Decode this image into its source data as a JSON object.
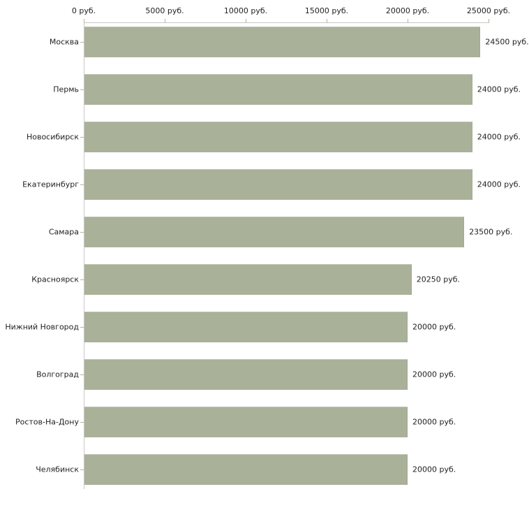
{
  "chart_data": {
    "type": "bar",
    "orientation": "horizontal",
    "title": "",
    "xlabel": "",
    "ylabel": "",
    "unit": "руб.",
    "categories": [
      "Москва",
      "Пермь",
      "Новосибирск",
      "Екатеринбург",
      "Самара",
      "Красноярск",
      "Нижний Новгород",
      "Волгоград",
      "Ростов-На-Дону",
      "Челябинск"
    ],
    "values": [
      24500,
      24000,
      24000,
      24000,
      23500,
      20250,
      20000,
      20000,
      20000,
      20000
    ],
    "value_labels": [
      "24500 руб.",
      "24000 руб.",
      "24000 руб.",
      "24000 руб.",
      "23500 руб.",
      "20250 руб.",
      "20000 руб.",
      "20000 руб.",
      "20000 руб.",
      "20000 руб."
    ],
    "xlim": [
      0,
      25000
    ],
    "x_ticks": [
      0,
      5000,
      10000,
      15000,
      20000,
      25000
    ],
    "x_tick_labels": [
      "0 руб.",
      "5000 руб.",
      "10000 руб.",
      "15000 руб.",
      "20000 руб.",
      "25000 руб."
    ],
    "axis_position": "top",
    "grid": false,
    "legend": false,
    "colors": {
      "bar_fill": "#aab199",
      "axis_line": "#c8c8c8",
      "tick_mark": "#b5b593",
      "text": "#222222",
      "background": "#ffffff"
    }
  }
}
